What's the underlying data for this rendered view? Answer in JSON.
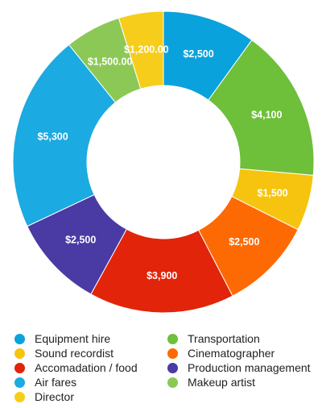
{
  "chart_data": {
    "type": "pie",
    "donut": true,
    "title": "",
    "legend_position": "bottom",
    "slices": [
      {
        "name": "Equipment hire",
        "value": 2500,
        "label": "$2,500",
        "color": "#0aa2dc"
      },
      {
        "name": "Transportation",
        "value": 4100,
        "label": "$4,100",
        "color": "#6ebf3a"
      },
      {
        "name": "Sound recordist",
        "value": 1500,
        "label": "$1,500",
        "color": "#f6c40e"
      },
      {
        "name": "Cinematographer",
        "value": 2500,
        "label": "$2,500",
        "color": "#fd6a04"
      },
      {
        "name": "Accomadation / food",
        "value": 3900,
        "label": "$3,900",
        "color": "#e1240a"
      },
      {
        "name": "Production management",
        "value": 2500,
        "label": "$2,500",
        "color": "#4a3aa4"
      },
      {
        "name": "Air fares",
        "value": 5300,
        "label": "$5,300",
        "color": "#1baae1"
      },
      {
        "name": "Makeup artist",
        "value": 1500,
        "label": "$1,500.00",
        "color": "#8cc856"
      },
      {
        "name": "Director",
        "value": 1200,
        "label": "$1,200.00",
        "color": "#f6cd1a"
      }
    ]
  }
}
